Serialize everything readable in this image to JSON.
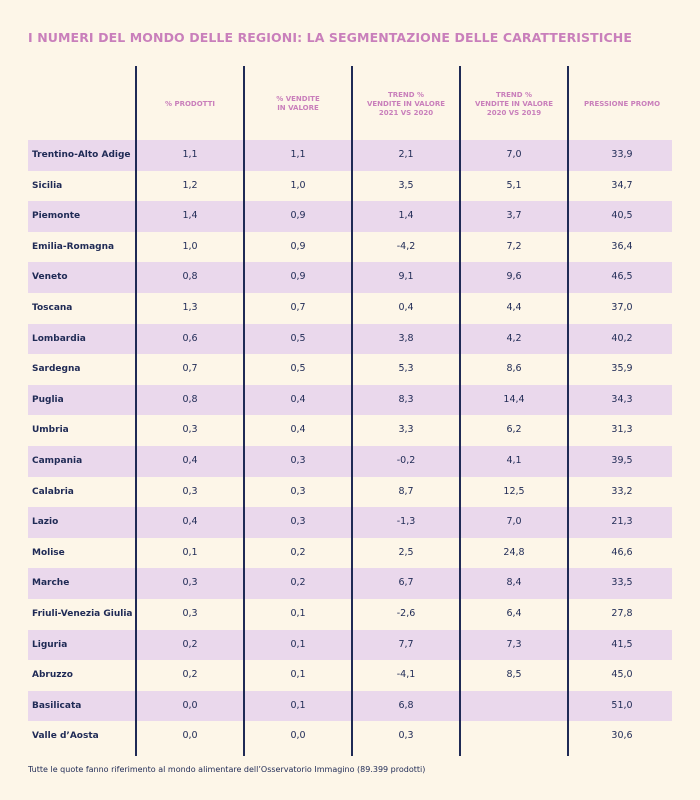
{
  "header": {
    "title": "I NUMERI DEL MONDO DELLE REGIONI: LA SEGMENTAZIONE DELLE CARATTERISTICHE"
  },
  "table": {
    "columns": [
      "% PRODOTTI",
      "% VENDITE\nIN VALORE",
      "TREND %\nVENDITE IN VALORE\n2021 VS 2020",
      "TREND %\nVENDITE IN VALORE\n2020 VS 2019",
      "PRESSIONE PROMO"
    ],
    "rows": [
      [
        "Trentino-Alto Adige",
        "1,1",
        "1,1",
        "2,1",
        "7,0",
        "33,9"
      ],
      [
        "Sicilia",
        "1,2",
        "1,0",
        "3,5",
        "5,1",
        "34,7"
      ],
      [
        "Piemonte",
        "1,4",
        "0,9",
        "1,4",
        "3,7",
        "40,5"
      ],
      [
        "Emilia-Romagna",
        "1,0",
        "0,9",
        "-4,2",
        "7,2",
        "36,4"
      ],
      [
        "Veneto",
        "0,8",
        "0,9",
        "9,1",
        "9,6",
        "46,5"
      ],
      [
        "Toscana",
        "1,3",
        "0,7",
        "0,4",
        "4,4",
        "37,0"
      ],
      [
        "Lombardia",
        "0,6",
        "0,5",
        "3,8",
        "4,2",
        "40,2"
      ],
      [
        "Sardegna",
        "0,7",
        "0,5",
        "5,3",
        "8,6",
        "35,9"
      ],
      [
        "Puglia",
        "0,8",
        "0,4",
        "8,3",
        "14,4",
        "34,3"
      ],
      [
        "Umbria",
        "0,3",
        "0,4",
        "3,3",
        "6,2",
        "31,3"
      ],
      [
        "Campania",
        "0,4",
        "0,3",
        "-0,2",
        "4,1",
        "39,5"
      ],
      [
        "Calabria",
        "0,3",
        "0,3",
        "8,7",
        "12,5",
        "33,2"
      ],
      [
        "Lazio",
        "0,4",
        "0,3",
        "-1,3",
        "7,0",
        "21,3"
      ],
      [
        "Molise",
        "0,1",
        "0,2",
        "2,5",
        "24,8",
        "46,6"
      ],
      [
        "Marche",
        "0,3",
        "0,2",
        "6,7",
        "8,4",
        "33,5"
      ],
      [
        "Friuli-Venezia Giulia",
        "0,3",
        "0,1",
        "-2,6",
        "6,4",
        "27,8"
      ],
      [
        "Liguria",
        "0,2",
        "0,1",
        "7,7",
        "7,3",
        "41,5"
      ],
      [
        "Abruzzo",
        "0,2",
        "0,1",
        "-4,1",
        "8,5",
        "45,0"
      ],
      [
        "Basilicata",
        "0,0",
        "0,1",
        "6,8",
        null,
        "51,0"
      ],
      [
        "Valle d’Aosta",
        "0,0",
        "0,0",
        "0,3",
        null,
        "30,6"
      ]
    ]
  },
  "footnote": "Tutte le quote fanno riferimento al mondo alimentare dell’Osservatorio Immagino (89.399 prodotti)"
}
